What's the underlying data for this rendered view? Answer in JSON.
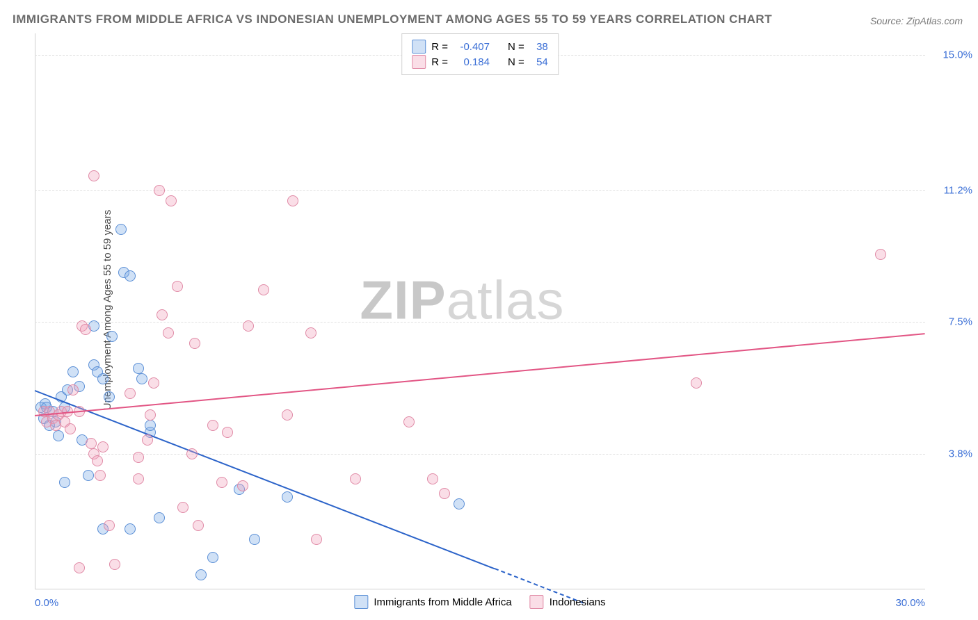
{
  "title": "IMMIGRANTS FROM MIDDLE AFRICA VS INDONESIAN UNEMPLOYMENT AMONG AGES 55 TO 59 YEARS CORRELATION CHART",
  "source": "Source: ZipAtlas.com",
  "ylabel": "Unemployment Among Ages 55 to 59 years",
  "watermark_a": "ZIP",
  "watermark_b": "atlas",
  "chart": {
    "type": "scatter",
    "xlim": [
      0,
      30
    ],
    "ylim": [
      0,
      15.6
    ],
    "grid_color": "#e0e0e0",
    "axis_color": "#d0d0d0",
    "tick_color": "#3b6fd6",
    "xticks": [
      {
        "v": 0.0,
        "label": "0.0%",
        "align": "left"
      },
      {
        "v": 30.0,
        "label": "30.0%",
        "align": "right"
      }
    ],
    "yticks": [
      {
        "v": 3.8,
        "label": "3.8%"
      },
      {
        "v": 7.5,
        "label": "7.5%"
      },
      {
        "v": 11.2,
        "label": "11.2%"
      },
      {
        "v": 15.0,
        "label": "15.0%"
      }
    ],
    "series": [
      {
        "id": "africa",
        "label": "Immigrants from Middle Africa",
        "fill": "rgba(120,170,230,0.35)",
        "stroke": "#5b8fd6",
        "trend_color": "#2b63c9",
        "R": "-0.407",
        "N": "38",
        "trend": {
          "x1": 0,
          "y1": 5.6,
          "x2": 15.5,
          "y2": 0.6,
          "dash_from_x": 15.5,
          "dash_to_x": 18.5
        },
        "points": [
          [
            0.2,
            5.1
          ],
          [
            0.3,
            4.8
          ],
          [
            0.35,
            5.2
          ],
          [
            0.4,
            5.1
          ],
          [
            0.5,
            4.6
          ],
          [
            0.6,
            5.0
          ],
          [
            0.7,
            4.7
          ],
          [
            0.8,
            4.3
          ],
          [
            0.9,
            5.4
          ],
          [
            1.0,
            5.1
          ],
          [
            1.1,
            5.6
          ],
          [
            1.3,
            6.1
          ],
          [
            1.5,
            5.7
          ],
          [
            1.6,
            4.2
          ],
          [
            1.8,
            3.2
          ],
          [
            1.0,
            3.0
          ],
          [
            2.0,
            6.3
          ],
          [
            2.1,
            6.1
          ],
          [
            2.3,
            5.9
          ],
          [
            2.5,
            5.4
          ],
          [
            2.6,
            7.1
          ],
          [
            2.0,
            7.4
          ],
          [
            3.0,
            8.9
          ],
          [
            3.2,
            8.8
          ],
          [
            2.9,
            10.1
          ],
          [
            3.5,
            6.2
          ],
          [
            3.6,
            5.9
          ],
          [
            3.9,
            4.4
          ],
          [
            3.2,
            1.7
          ],
          [
            2.3,
            1.7
          ],
          [
            5.6,
            0.4
          ],
          [
            4.2,
            2.0
          ],
          [
            3.9,
            4.6
          ],
          [
            6.0,
            0.9
          ],
          [
            8.5,
            2.6
          ],
          [
            7.4,
            1.4
          ],
          [
            14.3,
            2.4
          ],
          [
            6.9,
            2.8
          ]
        ]
      },
      {
        "id": "indonesians",
        "label": "Indonesians",
        "fill": "rgba(240,160,185,0.35)",
        "stroke": "#e08aa6",
        "trend_color": "#e25584",
        "R": "0.184",
        "N": "54",
        "trend": {
          "x1": 0,
          "y1": 4.9,
          "x2": 30,
          "y2": 7.2
        },
        "points": [
          [
            0.3,
            5.0
          ],
          [
            0.4,
            4.7
          ],
          [
            0.5,
            5.0
          ],
          [
            0.6,
            4.8
          ],
          [
            0.7,
            4.6
          ],
          [
            0.8,
            4.9
          ],
          [
            0.9,
            5.0
          ],
          [
            1.0,
            4.7
          ],
          [
            1.1,
            5.0
          ],
          [
            1.2,
            4.5
          ],
          [
            1.3,
            5.6
          ],
          [
            1.5,
            5.0
          ],
          [
            1.6,
            7.4
          ],
          [
            1.7,
            7.3
          ],
          [
            1.9,
            4.1
          ],
          [
            2.0,
            3.8
          ],
          [
            2.1,
            3.6
          ],
          [
            2.2,
            3.2
          ],
          [
            2.3,
            4.0
          ],
          [
            2.5,
            1.8
          ],
          [
            2.7,
            0.7
          ],
          [
            1.5,
            0.6
          ],
          [
            2.0,
            11.6
          ],
          [
            3.2,
            5.5
          ],
          [
            3.5,
            3.1
          ],
          [
            3.5,
            3.7
          ],
          [
            3.8,
            4.2
          ],
          [
            3.9,
            4.9
          ],
          [
            4.0,
            5.8
          ],
          [
            4.2,
            11.2
          ],
          [
            4.3,
            7.7
          ],
          [
            4.5,
            7.2
          ],
          [
            4.8,
            8.5
          ],
          [
            5.0,
            2.3
          ],
          [
            5.3,
            3.8
          ],
          [
            5.5,
            1.8
          ],
          [
            6.0,
            4.6
          ],
          [
            6.3,
            3.0
          ],
          [
            6.5,
            4.4
          ],
          [
            7.0,
            2.9
          ],
          [
            7.2,
            7.4
          ],
          [
            7.7,
            8.4
          ],
          [
            8.5,
            4.9
          ],
          [
            8.7,
            10.9
          ],
          [
            9.3,
            7.2
          ],
          [
            9.5,
            1.4
          ],
          [
            10.8,
            3.1
          ],
          [
            12.6,
            4.7
          ],
          [
            13.4,
            3.1
          ],
          [
            13.8,
            2.7
          ],
          [
            22.3,
            5.8
          ],
          [
            28.5,
            9.4
          ],
          [
            4.6,
            10.9
          ],
          [
            5.4,
            6.9
          ]
        ]
      }
    ]
  },
  "legend_top": {
    "R_label": "R =",
    "N_label": "N ="
  }
}
